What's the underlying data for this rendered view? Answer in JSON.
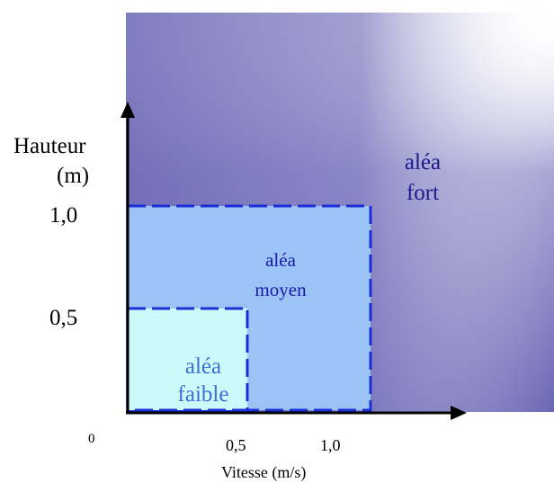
{
  "y_axis": {
    "label_line1": "Hauteur",
    "label_line2": "(m)",
    "ticks": [
      "1,0",
      "0,5"
    ]
  },
  "x_axis": {
    "label": "Vitesse (m/s)",
    "ticks": [
      "0,5",
      "1,0"
    ]
  },
  "origin_label": "0",
  "zones": {
    "fort": {
      "line1": "aléa",
      "line2": "fort",
      "text_color": "#1a1a8c"
    },
    "moyen": {
      "line1": "aléa",
      "line2": "moyen",
      "fill": "#9cc3f5",
      "text_color": "#1a1aa8"
    },
    "faible": {
      "line1": "aléa",
      "line2": "faible",
      "fill": "#ccfafa",
      "text_color": "#3a6fd8"
    }
  },
  "colors": {
    "zone_border": "#1c2ed6",
    "gradient_dark": "#5a56aa",
    "gradient_light": "#ffffff",
    "axis": "#000000"
  }
}
